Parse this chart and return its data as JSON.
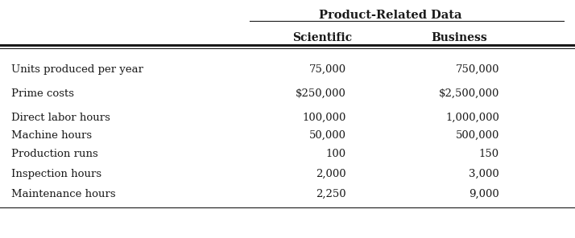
{
  "title": "Product-Related Data",
  "col_headers": [
    "Scientific",
    "Business"
  ],
  "row_labels": [
    "Units produced per year",
    "Prime costs",
    "Direct labor hours",
    "Machine hours",
    "Production runs",
    "Inspection hours",
    "Maintenance hours"
  ],
  "scientific_values": [
    "75,000",
    "$250,000",
    "100,000",
    "50,000",
    "100",
    "2,000",
    "2,250"
  ],
  "business_values": [
    "750,000",
    "$2,500,000",
    "1,000,000",
    "500,000",
    "150",
    "3,000",
    "9,000"
  ],
  "bg_color": "#ffffff",
  "text_color": "#1a1a1a",
  "font_size": 9.5,
  "header_font_size": 10.0,
  "title_font_size": 10.5
}
